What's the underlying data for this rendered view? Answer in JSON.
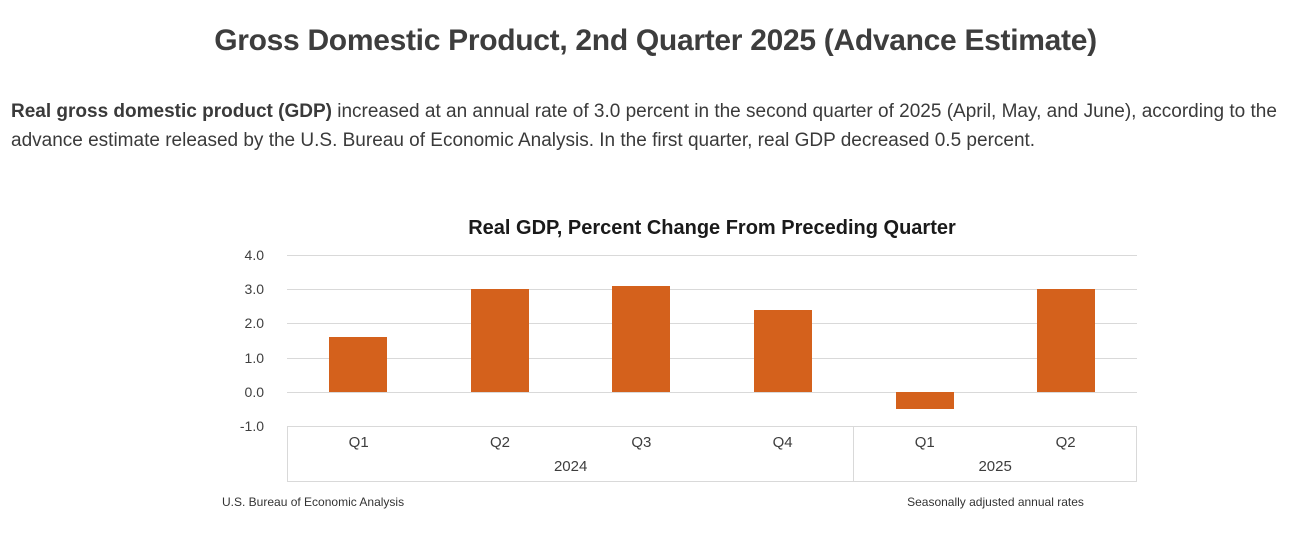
{
  "page": {
    "title": "Gross Domestic Product, 2nd Quarter 2025 (Advance Estimate)",
    "intro": {
      "bold": "Real gross domestic product (GDP)",
      "rest": " increased at an annual rate of 3.0 percent in the second quarter of 2025 (April, May, and June), according to the advance estimate released by the U.S. Bureau of Economic Analysis. In the first quarter, real GDP decreased 0.5 percent."
    }
  },
  "chart_data": {
    "type": "bar",
    "title": "Real GDP, Percent Change From Preceding Quarter",
    "categories": [
      "2024 Q1",
      "2024 Q2",
      "2024 Q3",
      "2024 Q4",
      "2025 Q1",
      "2025 Q2"
    ],
    "values": [
      1.6,
      3.0,
      3.1,
      2.4,
      -0.5,
      3.0
    ],
    "groups": [
      {
        "year": "2024",
        "quarters": [
          "Q1",
          "Q2",
          "Q3",
          "Q4"
        ]
      },
      {
        "year": "2025",
        "quarters": [
          "Q1",
          "Q2"
        ]
      }
    ],
    "ylim": [
      -1.0,
      4.0
    ],
    "yticks": [
      4.0,
      3.0,
      2.0,
      1.0,
      0.0,
      -1.0
    ],
    "grid": true,
    "legend": "none",
    "bar_color": "#d4611c",
    "grid_color": "#d9d9d9",
    "source_note": "U.S. Bureau of Economic Analysis",
    "footnote": "Seasonally adjusted annual rates"
  }
}
